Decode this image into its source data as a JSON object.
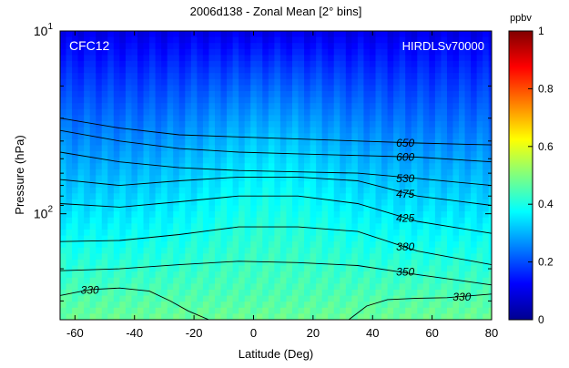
{
  "chart_data": {
    "type": "heatmap",
    "title": "2006d138 - Zonal Mean   [2° bins]",
    "xlabel": "Latitude (Deg)",
    "ylabel": "Pressure (hPa)",
    "xlim": [
      -65,
      80
    ],
    "x_ticks": [
      -60,
      -40,
      -20,
      0,
      20,
      40,
      60,
      80
    ],
    "y_scale": "log",
    "y_reversed": true,
    "ylim_hPa": [
      10,
      380
    ],
    "y_tick_labels": [
      {
        "base": "10",
        "exp": "1",
        "value": 10
      },
      {
        "base": "10",
        "exp": "2",
        "value": 100
      }
    ],
    "species_label": "CFC12",
    "instrument_label": "HIRDLSv70000",
    "colorbar": {
      "title": "ppbv",
      "min": 0,
      "max": 1,
      "ticks": [
        "0",
        "0.2",
        "0.4",
        "0.6",
        "0.8",
        "1"
      ],
      "colormap": "jet"
    },
    "contours": [
      {
        "label": "650",
        "lat": [
          -65,
          -45,
          -25,
          -5,
          15,
          35,
          55,
          80
        ],
        "p": [
          30,
          34,
          37,
          38,
          39,
          40,
          41,
          42
        ]
      },
      {
        "label": "600",
        "lat": [
          -65,
          -45,
          -25,
          -5,
          15,
          35,
          55,
          80
        ],
        "p": [
          35,
          40,
          44,
          46,
          47,
          48,
          49,
          52
        ]
      },
      {
        "label": "530",
        "lat": [
          -65,
          -45,
          -25,
          -5,
          15,
          35,
          55,
          80
        ],
        "p": [
          46,
          52,
          56,
          58,
          59,
          60,
          64,
          70
        ]
      },
      {
        "label": "475",
        "lat": [
          -65,
          -45,
          -25,
          -5,
          15,
          35,
          55,
          80
        ],
        "p": [
          65,
          70,
          66,
          63,
          63,
          66,
          80,
          90
        ]
      },
      {
        "label": "425",
        "lat": [
          -65,
          -45,
          -25,
          -5,
          15,
          35,
          55,
          80
        ],
        "p": [
          88,
          92,
          86,
          80,
          80,
          88,
          110,
          128
        ]
      },
      {
        "label": "380",
        "lat": [
          -65,
          -45,
          -25,
          -5,
          15,
          35,
          55,
          80
        ],
        "p": [
          142,
          140,
          130,
          118,
          118,
          125,
          160,
          190
        ]
      },
      {
        "label": "350",
        "lat": [
          -65,
          -45,
          -25,
          -5,
          15,
          35,
          55,
          80
        ],
        "p": [
          205,
          200,
          190,
          182,
          185,
          192,
          215,
          245
        ]
      },
      {
        "label": "330",
        "lat": [
          -65,
          -55,
          -45,
          -35,
          -28,
          -22,
          -15
        ],
        "p": [
          280,
          260,
          255,
          265,
          300,
          340,
          380
        ]
      },
      {
        "label": "330",
        "lat": [
          32,
          38,
          45,
          55,
          65,
          80
        ],
        "p": [
          380,
          320,
          295,
          290,
          288,
          275
        ]
      }
    ],
    "contour_labels": [
      {
        "text": "650",
        "lat": 51,
        "p": 41
      },
      {
        "text": "600",
        "lat": 51,
        "p": 49
      },
      {
        "text": "530",
        "lat": 51,
        "p": 64
      },
      {
        "text": "475",
        "lat": 51,
        "p": 78
      },
      {
        "text": "425",
        "lat": 51,
        "p": 106
      },
      {
        "text": "380",
        "lat": 51,
        "p": 152
      },
      {
        "text": "350",
        "lat": 51,
        "p": 208
      },
      {
        "text": "330",
        "lat": -55,
        "p": 262
      },
      {
        "text": "330",
        "lat": 70,
        "p": 285
      }
    ]
  }
}
